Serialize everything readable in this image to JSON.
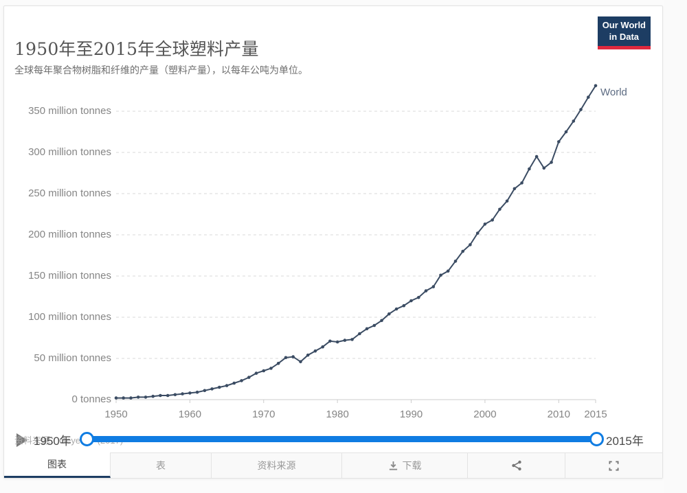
{
  "header": {
    "title": "1950年至2015年全球塑料产量",
    "subtitle": "全球每年聚合物树脂和纤维的产量（塑料产量），以每年公吨为单位。",
    "logo": {
      "line1": "Our World",
      "line2": "in Data"
    }
  },
  "chart_data": {
    "type": "line",
    "title": "1950年至2015年全球塑料产量",
    "xlabel": "",
    "ylabel": "",
    "unit": "million tonnes",
    "xlim": [
      1950,
      2015
    ],
    "ylim": [
      0,
      381
    ],
    "grid": true,
    "legend_position": "end-of-line",
    "series": [
      {
        "name": "World",
        "x": [
          1950,
          1951,
          1952,
          1953,
          1954,
          1955,
          1956,
          1957,
          1958,
          1959,
          1960,
          1961,
          1962,
          1963,
          1964,
          1965,
          1966,
          1967,
          1968,
          1969,
          1970,
          1971,
          1972,
          1973,
          1974,
          1975,
          1976,
          1977,
          1978,
          1979,
          1980,
          1981,
          1982,
          1983,
          1984,
          1985,
          1986,
          1987,
          1988,
          1989,
          1990,
          1991,
          1992,
          1993,
          1994,
          1995,
          1996,
          1997,
          1998,
          1999,
          2000,
          2001,
          2002,
          2003,
          2004,
          2005,
          2006,
          2007,
          2008,
          2009,
          2010,
          2011,
          2012,
          2013,
          2014,
          2015
        ],
        "values": [
          2,
          2,
          2,
          3,
          3,
          4,
          5,
          5,
          6,
          7,
          8,
          9,
          11,
          13,
          15,
          17,
          20,
          23,
          27,
          32,
          35,
          38,
          44,
          51,
          52,
          46,
          54,
          59,
          64,
          71,
          70,
          72,
          73,
          80,
          86,
          90,
          96,
          104,
          110,
          114,
          120,
          124,
          132,
          137,
          151,
          156,
          168,
          180,
          188,
          202,
          213,
          218,
          231,
          241,
          256,
          263,
          280,
          295,
          281,
          288,
          313,
          325,
          338,
          352,
          367,
          381
        ]
      }
    ],
    "y_ticks": [
      {
        "value": 0,
        "label": "0 tonnes"
      },
      {
        "value": 50,
        "label": "50 million tonnes"
      },
      {
        "value": 100,
        "label": "100 million tonnes"
      },
      {
        "value": 150,
        "label": "150 million tonnes"
      },
      {
        "value": 200,
        "label": "200 million tonnes"
      },
      {
        "value": 250,
        "label": "250 million tonnes"
      },
      {
        "value": 300,
        "label": "300 million tonnes"
      },
      {
        "value": 350,
        "label": "350 million tonnes"
      }
    ],
    "x_ticks": [
      {
        "value": 1950,
        "label": "1950"
      },
      {
        "value": 1960,
        "label": "1960"
      },
      {
        "value": 1970,
        "label": "1970"
      },
      {
        "value": 1980,
        "label": "1980"
      },
      {
        "value": 1990,
        "label": "1990"
      },
      {
        "value": 2000,
        "label": "2000"
      },
      {
        "value": 2010,
        "label": "2010"
      },
      {
        "value": 2015,
        "label": "2015"
      }
    ]
  },
  "timeline": {
    "start_label": "1950年",
    "end_label": "2015年"
  },
  "footer": {
    "source_text": "资料来源：Geyer 等 (2017)"
  },
  "tabs": [
    {
      "label": "图表",
      "active": true
    },
    {
      "label": "表",
      "active": false
    },
    {
      "label": "资料来源",
      "active": false
    },
    {
      "label": "下载",
      "active": false,
      "icon": "download-icon"
    },
    {
      "label": "",
      "active": false,
      "icon": "share-icon"
    },
    {
      "label": "",
      "active": false,
      "icon": "fullscreen-icon"
    }
  ],
  "colors": {
    "line": "#3b4c63",
    "series_label": "#5c6b82",
    "slider_blue": "#0f7ce2",
    "logo_navy": "#1d3d63",
    "logo_red": "#e0293e",
    "grid": "#d9d9d9",
    "axis": "#cccccc"
  }
}
